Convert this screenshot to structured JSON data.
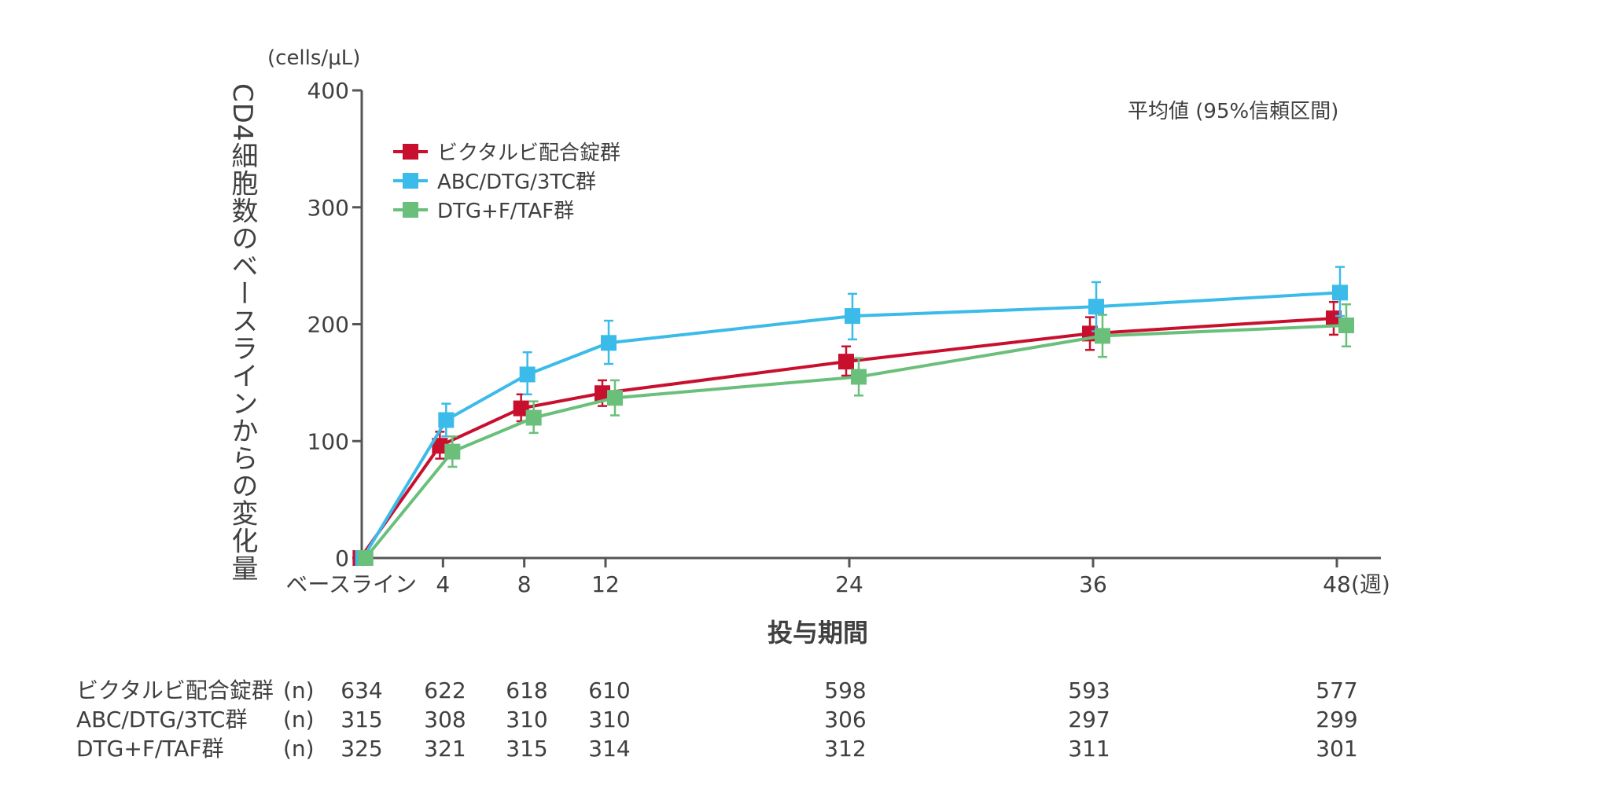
{
  "chart_data": {
    "type": "line",
    "unit_label": "(cells/μL)",
    "ylabel": "CD4細胞数のベースラインからの変化量",
    "xlabel": "投与期間",
    "x_unit": "(週)",
    "annotation": "平均値 (95%信頼区間)",
    "legend_position": "top-left",
    "grid": false,
    "ylim": [
      0,
      400
    ],
    "yticks": [
      0,
      100,
      200,
      300,
      400
    ],
    "x": [
      0,
      4,
      8,
      12,
      24,
      36,
      48
    ],
    "xtick_labels": [
      "ベースライン",
      "4",
      "8",
      "12",
      "24",
      "36",
      "48"
    ],
    "series": [
      {
        "name": "ビクタルビ配合錠群",
        "color": "#c8102e",
        "values": [
          0,
          96,
          128,
          141,
          168,
          192,
          205
        ],
        "ci_low": [
          0,
          85,
          117,
          130,
          156,
          178,
          191
        ],
        "ci_high": [
          0,
          108,
          140,
          152,
          181,
          206,
          219
        ],
        "n": [
          "634",
          "622",
          "618",
          "610",
          "598",
          "593",
          "577"
        ]
      },
      {
        "name": "ABC/DTG/3TC群",
        "color": "#3bbbe9",
        "values": [
          0,
          118,
          157,
          184,
          207,
          215,
          227
        ],
        "ci_low": [
          0,
          104,
          140,
          166,
          187,
          194,
          207
        ],
        "ci_high": [
          0,
          132,
          176,
          203,
          226,
          236,
          249
        ],
        "n": [
          "315",
          "308",
          "310",
          "310",
          "306",
          "297",
          "299"
        ]
      },
      {
        "name": "DTG+F/TAF群",
        "color": "#6abf7b",
        "values": [
          0,
          91,
          120,
          137,
          155,
          190,
          199
        ],
        "ci_low": [
          0,
          78,
          107,
          122,
          139,
          172,
          181
        ],
        "ci_high": [
          0,
          104,
          134,
          152,
          171,
          208,
          217
        ],
        "n": [
          "325",
          "321",
          "315",
          "314",
          "312",
          "311",
          "301"
        ]
      }
    ],
    "n_label": "(n)"
  }
}
